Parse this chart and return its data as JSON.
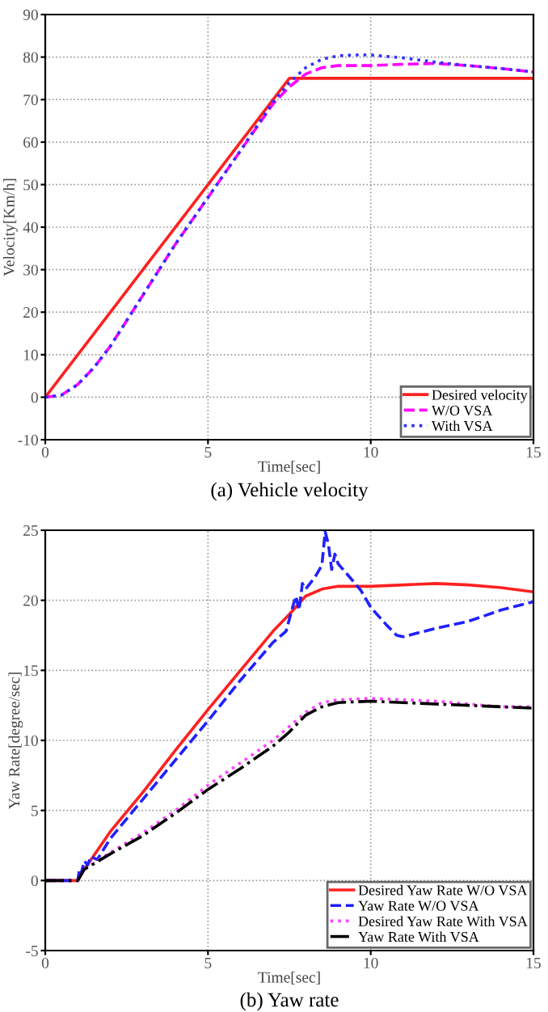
{
  "chart_data": [
    {
      "type": "line",
      "title": "(a) Vehicle velocity",
      "xlabel": "Time[sec]",
      "ylabel": "Velocity[Km/h]",
      "xlim": [
        0,
        15
      ],
      "xticks": [
        0,
        5,
        10,
        15
      ],
      "ylim": [
        -10,
        90
      ],
      "yticks": [
        -10,
        0,
        10,
        20,
        30,
        40,
        50,
        60,
        70,
        80,
        90
      ],
      "grid": true,
      "legend": "lower right",
      "series": [
        {
          "name": "Desired velocity",
          "color": "#ff2020",
          "line_style": "solid",
          "x": [
            0,
            7.5,
            15
          ],
          "values": [
            0,
            75,
            75
          ]
        },
        {
          "name": "W/O VSA",
          "color": "#ff00ff",
          "line_style": "dashed",
          "x": [
            0,
            0.5,
            1,
            1.5,
            2,
            3,
            4,
            5,
            6,
            7,
            7.5,
            8,
            8.5,
            9,
            10,
            11,
            12,
            13,
            14,
            15
          ],
          "values": [
            0,
            0.5,
            3,
            7,
            12,
            24,
            36,
            47,
            58,
            69,
            73,
            76,
            77.5,
            78,
            78,
            78.3,
            78.5,
            78,
            77.3,
            76.5
          ]
        },
        {
          "name": "With VSA",
          "color": "#3030ff",
          "line_style": "dotted",
          "x": [
            0,
            0.5,
            1,
            1.5,
            2,
            3,
            4,
            5,
            6,
            7,
            7.5,
            8,
            8.5,
            9,
            9.5,
            10,
            11,
            12,
            13,
            14,
            15
          ],
          "values": [
            0,
            0.5,
            3,
            7,
            12,
            24,
            36,
            47,
            58,
            69.5,
            74,
            77.5,
            79.5,
            80.3,
            80.5,
            80.5,
            79.8,
            78.8,
            78,
            77.3,
            76.5
          ]
        }
      ]
    },
    {
      "type": "line",
      "title": "(b) Yaw rate",
      "xlabel": "Time[sec]",
      "ylabel": "Yaw Rate[degree/sec]",
      "xlim": [
        0,
        15
      ],
      "xticks": [
        0,
        5,
        10,
        15
      ],
      "ylim": [
        -5,
        25
      ],
      "yticks": [
        -5,
        0,
        5,
        10,
        15,
        20,
        25
      ],
      "grid": true,
      "legend": "lower right",
      "series": [
        {
          "name": "Desired Yaw Rate W/O VSA",
          "color": "#ff2020",
          "line_style": "solid",
          "x": [
            0,
            1,
            1.2,
            2,
            3,
            4,
            5,
            6,
            7,
            7.5,
            8,
            8.5,
            9,
            10,
            11,
            12,
            13,
            14,
            15
          ],
          "values": [
            0,
            0,
            0.8,
            3.5,
            6.3,
            9.3,
            12.2,
            15,
            17.8,
            19,
            20.3,
            20.8,
            21,
            21,
            21.1,
            21.2,
            21.1,
            20.9,
            20.6
          ]
        },
        {
          "name": "Yaw Rate W/O VSA",
          "color": "#2020ff",
          "line_style": "dashed",
          "x": [
            0,
            1,
            1.05,
            1.1,
            1.2,
            1.3,
            1.4,
            1.6,
            2,
            3,
            4,
            5,
            6,
            7,
            7.4,
            7.6,
            7.7,
            7.8,
            7.9,
            8.0,
            8.3,
            8.5,
            8.6,
            8.7,
            8.8,
            8.9,
            9,
            9.3,
            9.7,
            10,
            10.5,
            10.8,
            11,
            11.5,
            12,
            13,
            14,
            15
          ],
          "values": [
            0,
            0,
            0.8,
            0.5,
            1.4,
            1.1,
            1.7,
            1.5,
            3,
            5.8,
            8.6,
            11.4,
            14.3,
            17,
            17.8,
            19.5,
            20.3,
            19.3,
            21.2,
            20.8,
            21.7,
            22.5,
            24.9,
            24,
            22.2,
            23.3,
            22.6,
            21.8,
            20.7,
            19.5,
            18.2,
            17.5,
            17.4,
            17.7,
            18,
            18.5,
            19.3,
            19.9
          ]
        },
        {
          "name": "Desired Yaw Rate With VSA",
          "color": "#ff44ff",
          "line_style": "dotted",
          "x": [
            0,
            1,
            1.2,
            2,
            3,
            4,
            5,
            6,
            7,
            7.5,
            8,
            8.5,
            9,
            10,
            11,
            12,
            13,
            14,
            15
          ],
          "values": [
            0,
            0,
            0.8,
            2,
            3.4,
            5,
            6.8,
            8.4,
            10,
            11,
            12,
            12.7,
            12.9,
            13,
            12.9,
            12.8,
            12.6,
            12.4,
            12.4
          ]
        },
        {
          "name": "Yaw Rate With VSA",
          "color": "#000000",
          "line_style": "dashdot",
          "x": [
            0,
            1,
            1.2,
            2,
            3,
            4,
            5,
            6,
            7,
            7.5,
            8,
            8.5,
            9,
            10,
            11,
            12,
            13,
            14,
            15
          ],
          "values": [
            0,
            0,
            0.8,
            1.9,
            3.2,
            4.8,
            6.5,
            8,
            9.6,
            10.6,
            11.8,
            12.4,
            12.7,
            12.8,
            12.7,
            12.6,
            12.5,
            12.4,
            12.3
          ]
        }
      ]
    }
  ]
}
